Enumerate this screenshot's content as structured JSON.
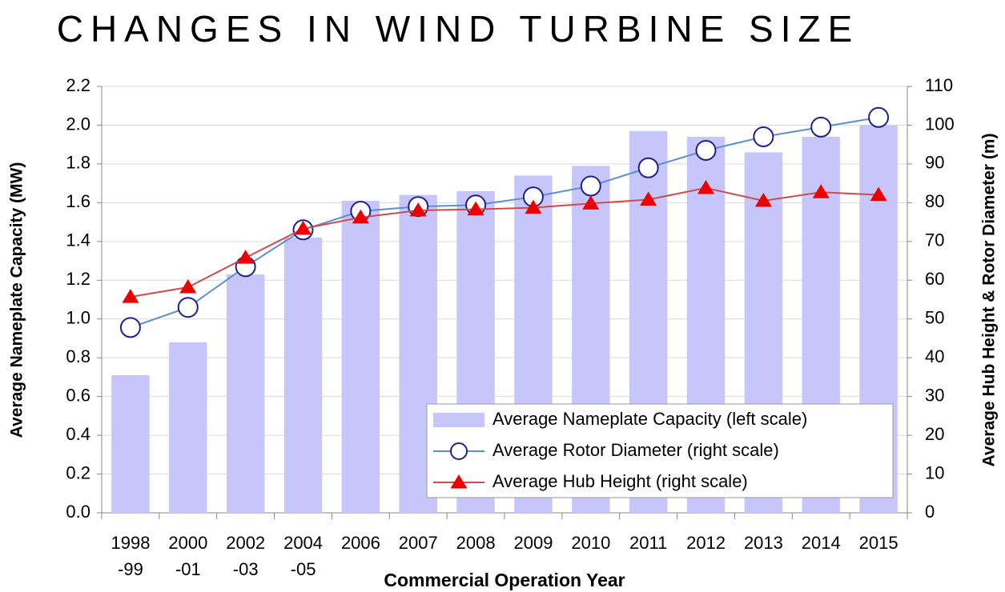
{
  "chart_data": {
    "type": "bar",
    "title": "CHANGES IN WIND TURBINE SIZE",
    "x_label": "Commercial Operation Year",
    "y_label": "Average Nameplate Capacity (MW)",
    "y2_label": "Average Hub Height & Rotor Diameter (m)",
    "categories": [
      "1998\n-99",
      "2000\n-01",
      "2002\n-03",
      "2004\n-05",
      "2006",
      "2007",
      "2008",
      "2009",
      "2010",
      "2011",
      "2012",
      "2013",
      "2014",
      "2015"
    ],
    "series": [
      {
        "name": "Average Nameplate Capacity (left scale)",
        "type": "bar",
        "color": "#c6c6fb",
        "values": [
          0.71,
          0.88,
          1.23,
          1.42,
          1.61,
          1.64,
          1.66,
          1.74,
          1.79,
          1.97,
          1.94,
          1.86,
          1.94,
          2.0
        ]
      },
      {
        "name": "Average Rotor Diameter (right scale)",
        "type": "line",
        "axis": "y2",
        "color": "#5b8fd0",
        "marker": "circle",
        "marker_color": "#1f1f8f",
        "values": [
          47.8,
          53,
          63.5,
          73,
          77.8,
          79,
          79.4,
          81.5,
          84.3,
          89,
          93.5,
          97,
          99.5,
          102
        ]
      },
      {
        "name": "Average Hub Height (right scale)",
        "type": "line",
        "axis": "y2",
        "color": "#d04a4a",
        "marker": "triangle",
        "marker_color": "#ee0000",
        "values": [
          55.7,
          58.2,
          65.8,
          73.3,
          76.2,
          78,
          78.3,
          78.7,
          79.8,
          80.8,
          83.8,
          80.5,
          82.7,
          82
        ]
      }
    ],
    "ylim": [
      0,
      2.2
    ],
    "yticks": [
      {
        "value": 0,
        "label": "0.0"
      },
      0.2,
      0.4,
      0.6,
      0.8,
      {
        "value": 1,
        "label": "1.0"
      },
      1.2,
      1.4,
      1.6,
      1.8,
      {
        "value": 2,
        "label": "2.0"
      },
      2.2
    ],
    "y2lim": [
      0,
      110
    ],
    "y2ticks": [
      0,
      10,
      20,
      30,
      40,
      50,
      60,
      70,
      80,
      90,
      100,
      110
    ],
    "grid": true,
    "legend": "lower right"
  }
}
